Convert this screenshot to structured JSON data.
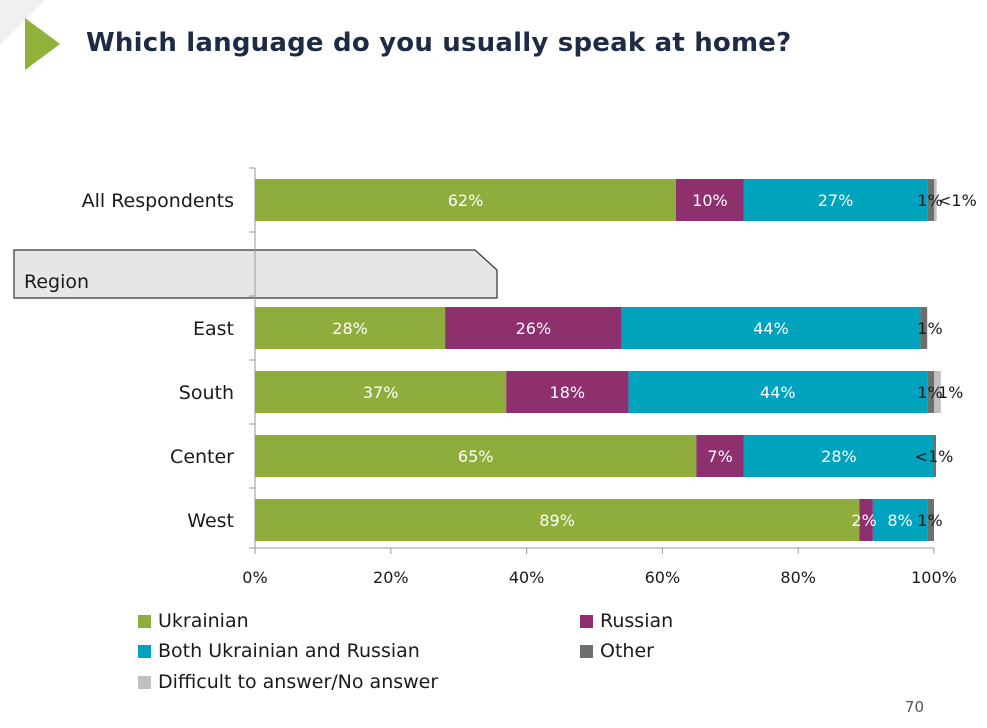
{
  "title": "Which language do you usually speak at home?",
  "page_number": "70",
  "colors": {
    "ukrainian": "#8fad3c",
    "russian": "#8e2f6e",
    "both": "#00a3bd",
    "other": "#6f6f6f",
    "difficult": "#c0c0c0",
    "axis": "#999999",
    "title": "#1f2a44",
    "accent": "#8fb33a"
  },
  "region_label": "Region",
  "chart_data": {
    "type": "bar",
    "orientation": "horizontal",
    "stacked": true,
    "title": "Which language do you usually speak at home?",
    "categories": [
      "All Respondents",
      "East",
      "South",
      "Center",
      "West"
    ],
    "xlim": [
      0,
      100
    ],
    "ticks": [
      "0%",
      "20%",
      "40%",
      "60%",
      "80%",
      "100%"
    ],
    "tick_values": [
      0,
      20,
      40,
      60,
      80,
      100
    ],
    "grid": false,
    "legend_position": "bottom",
    "series": [
      {
        "name": "Ukrainian",
        "key": "ukrainian",
        "values": [
          62,
          28,
          37,
          65,
          89
        ],
        "labels": [
          "62%",
          "28%",
          "37%",
          "65%",
          "89%"
        ]
      },
      {
        "name": "Russian",
        "key": "russian",
        "values": [
          10,
          26,
          18,
          7,
          2
        ],
        "labels": [
          "10%",
          "26%",
          "18%",
          "7%",
          "2%"
        ]
      },
      {
        "name": "Both Ukrainian and Russian",
        "key": "both",
        "values": [
          27,
          44,
          44,
          28,
          8
        ],
        "labels": [
          "27%",
          "44%",
          "44%",
          "28%",
          "8%"
        ]
      },
      {
        "name": "Other",
        "key": "other",
        "values": [
          1,
          1,
          1,
          0.3,
          1
        ],
        "labels": [
          "1%",
          "1%",
          "1%",
          "",
          "1%"
        ]
      },
      {
        "name": "Difficult to answer/No answer",
        "key": "difficult",
        "values": [
          0.4,
          0,
          1,
          0,
          0
        ],
        "labels": [
          "<1%",
          "",
          "1%",
          "<1%",
          ""
        ]
      }
    ]
  }
}
